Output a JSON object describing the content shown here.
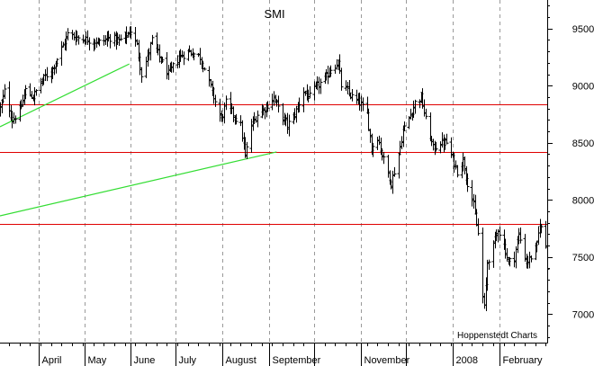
{
  "chart_data": {
    "type": "ohlc",
    "title": "SMI",
    "credit": "Hoppenstedt Charts",
    "xlabel": "",
    "ylabel": "",
    "y_axis_side": "right",
    "ylim": [
      6750,
      9750
    ],
    "y_ticks": [
      7000,
      7500,
      8000,
      8500,
      9000,
      9500
    ],
    "x_range": [
      "2007-03-06",
      "2008-03-04"
    ],
    "x_month_labels": [
      {
        "date": "2007-04-01",
        "label": "April"
      },
      {
        "date": "2007-05-01",
        "label": "May"
      },
      {
        "date": "2007-06-01",
        "label": "June"
      },
      {
        "date": "2007-07-01",
        "label": "July"
      },
      {
        "date": "2007-08-01",
        "label": "August"
      },
      {
        "date": "2007-09-01",
        "label": "September"
      },
      {
        "date": "2007-10-01",
        "label": ""
      },
      {
        "date": "2007-11-01",
        "label": "November"
      },
      {
        "date": "2007-12-01",
        "label": ""
      },
      {
        "date": "2008-01-01",
        "label": "2008"
      },
      {
        "date": "2008-02-01",
        "label": "February"
      }
    ],
    "x_minor_ticks": "weekly",
    "grid": {
      "vertical": "dashed at month starts",
      "horizontal": false
    },
    "horizontal_lines": [
      {
        "value": 8840,
        "color": "#e00000"
      },
      {
        "value": 8420,
        "color": "#e00000"
      },
      {
        "value": 7790,
        "color": "#e00000"
      }
    ],
    "trend_lines": [
      {
        "color": "#33dd33",
        "points": [
          [
            "2007-03-06",
            8640
          ],
          [
            "2007-05-31",
            9190
          ]
        ]
      },
      {
        "color": "#33dd33",
        "points": [
          [
            "2007-03-06",
            7860
          ],
          [
            "2007-09-06",
            8420
          ]
        ]
      }
    ],
    "series": [
      {
        "type": "ohlc",
        "color": "#000000",
        "daily_close_anchors": [
          [
            "2007-03-06",
            8800
          ],
          [
            "2007-03-09",
            8950
          ],
          [
            "2007-03-14",
            8700
          ],
          [
            "2007-03-19",
            8780
          ],
          [
            "2007-03-23",
            8960
          ],
          [
            "2007-03-28",
            8900
          ],
          [
            "2007-04-03",
            9050
          ],
          [
            "2007-04-10",
            9150
          ],
          [
            "2007-04-17",
            9350
          ],
          [
            "2007-04-20",
            9450
          ],
          [
            "2007-04-27",
            9420
          ],
          [
            "2007-05-04",
            9400
          ],
          [
            "2007-05-11",
            9380
          ],
          [
            "2007-05-18",
            9420
          ],
          [
            "2007-05-24",
            9390
          ],
          [
            "2007-05-30",
            9450
          ],
          [
            "2007-06-01",
            9480
          ],
          [
            "2007-06-05",
            9350
          ],
          [
            "2007-06-08",
            9100
          ],
          [
            "2007-06-12",
            9250
          ],
          [
            "2007-06-15",
            9400
          ],
          [
            "2007-06-20",
            9250
          ],
          [
            "2007-06-26",
            9100
          ],
          [
            "2007-07-03",
            9250
          ],
          [
            "2007-07-10",
            9300
          ],
          [
            "2007-07-17",
            9250
          ],
          [
            "2007-07-20",
            9150
          ],
          [
            "2007-07-26",
            8900
          ],
          [
            "2007-07-31",
            8700
          ],
          [
            "2007-08-03",
            8850
          ],
          [
            "2007-08-08",
            8750
          ],
          [
            "2007-08-13",
            8650
          ],
          [
            "2007-08-16",
            8380
          ],
          [
            "2007-08-20",
            8650
          ],
          [
            "2007-08-24",
            8750
          ],
          [
            "2007-08-29",
            8800
          ],
          [
            "2007-09-04",
            8900
          ],
          [
            "2007-09-07",
            8800
          ],
          [
            "2007-09-13",
            8650
          ],
          [
            "2007-09-18",
            8750
          ],
          [
            "2007-09-24",
            8950
          ],
          [
            "2007-09-28",
            8900
          ],
          [
            "2007-10-03",
            9000
          ],
          [
            "2007-10-08",
            9050
          ],
          [
            "2007-10-12",
            9150
          ],
          [
            "2007-10-17",
            9200
          ],
          [
            "2007-10-19",
            9000
          ],
          [
            "2007-10-23",
            8950
          ],
          [
            "2007-10-26",
            8900
          ],
          [
            "2007-10-31",
            8850
          ],
          [
            "2007-11-05",
            8750
          ],
          [
            "2007-11-08",
            8450
          ],
          [
            "2007-11-12",
            8550
          ],
          [
            "2007-11-16",
            8350
          ],
          [
            "2007-11-21",
            8150
          ],
          [
            "2007-11-26",
            8400
          ],
          [
            "2007-11-29",
            8600
          ],
          [
            "2007-12-04",
            8750
          ],
          [
            "2007-12-07",
            8850
          ],
          [
            "2007-12-11",
            8900
          ],
          [
            "2007-12-14",
            8700
          ],
          [
            "2007-12-19",
            8450
          ],
          [
            "2007-12-24",
            8500
          ],
          [
            "2007-12-28",
            8500
          ],
          [
            "2008-01-04",
            8250
          ],
          [
            "2008-01-08",
            8350
          ],
          [
            "2008-01-11",
            8150
          ],
          [
            "2008-01-15",
            7950
          ],
          [
            "2008-01-18",
            7700
          ],
          [
            "2008-01-21",
            7150
          ],
          [
            "2008-01-22",
            7050
          ],
          [
            "2008-01-24",
            7450
          ],
          [
            "2008-01-28",
            7600
          ],
          [
            "2008-01-31",
            7750
          ],
          [
            "2008-02-04",
            7600
          ],
          [
            "2008-02-07",
            7450
          ],
          [
            "2008-02-11",
            7500
          ],
          [
            "2008-02-14",
            7700
          ],
          [
            "2008-02-19",
            7450
          ],
          [
            "2008-02-22",
            7500
          ],
          [
            "2008-02-26",
            7600
          ],
          [
            "2008-02-28",
            7800
          ],
          [
            "2008-03-03",
            7600
          ],
          [
            "2008-03-04",
            7420
          ]
        ]
      }
    ]
  }
}
